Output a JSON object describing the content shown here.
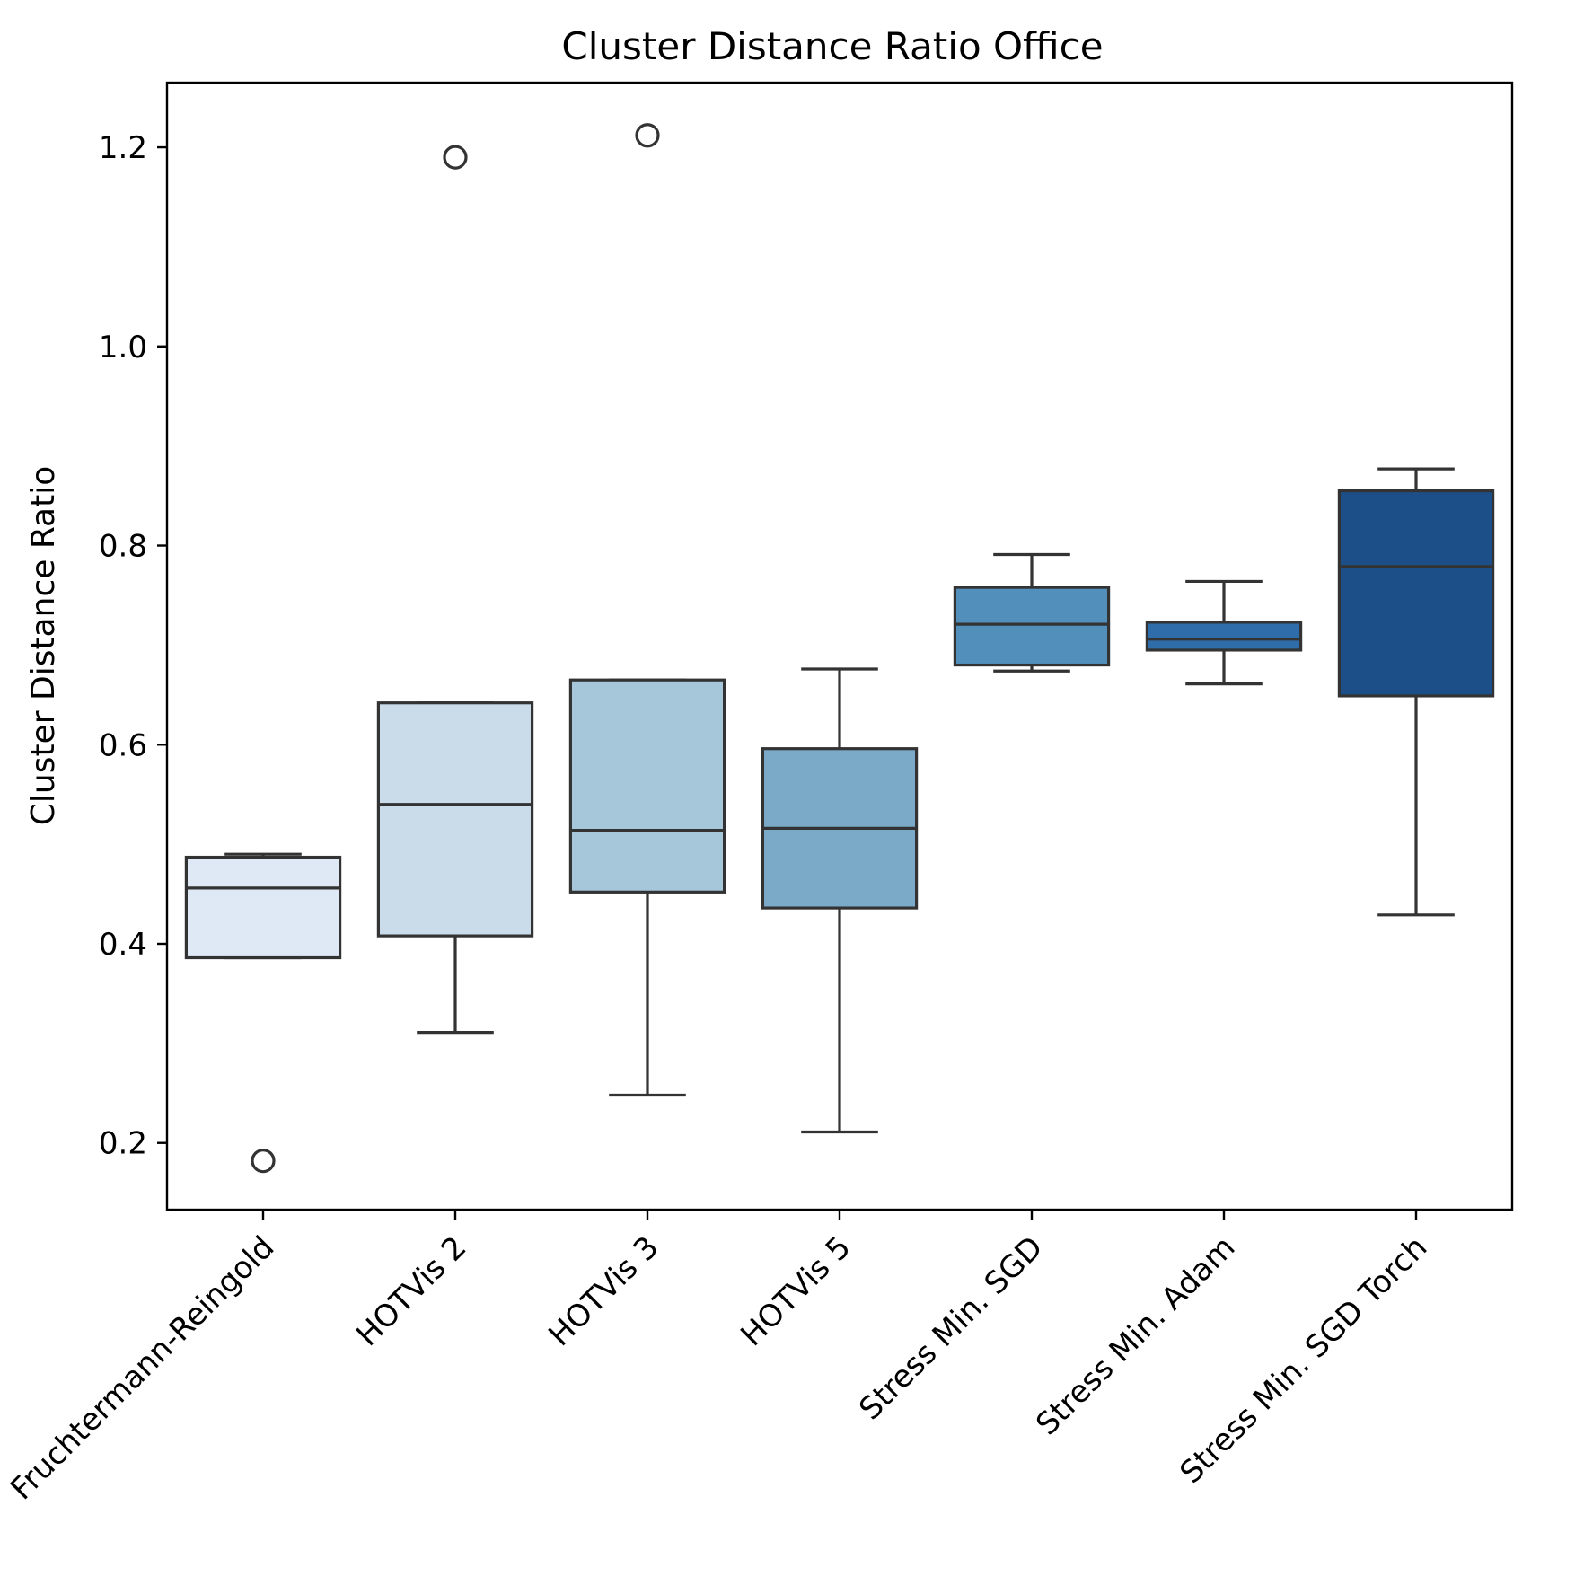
{
  "chart_data": {
    "type": "box",
    "title": "Cluster Distance Ratio Office",
    "xlabel": "",
    "ylabel": "Cluster Distance Ratio",
    "ylim": [
      0.133,
      1.265
    ],
    "yticks": [
      0.2,
      0.4,
      0.6,
      0.8,
      1.0,
      1.2
    ],
    "ytick_labels": [
      "0.2",
      "0.4",
      "0.6",
      "0.8",
      "1.0",
      "1.2"
    ],
    "grid": false,
    "legend": "none",
    "categories": [
      "Fruchtermann-Reingold",
      "HOTVis 2",
      "HOTVis 3",
      "HOTVis 5",
      "Stress Min. SGD",
      "Stress Min. Adam",
      "Stress Min. SGD Torch"
    ],
    "boxes": [
      {
        "whisker_low": 0.386,
        "q1": 0.386,
        "median": 0.456,
        "q3": 0.487,
        "whisker_high": 0.49,
        "outliers": [
          0.182
        ],
        "color": "#dee9f5"
      },
      {
        "whisker_low": 0.311,
        "q1": 0.408,
        "median": 0.54,
        "q3": 0.642,
        "whisker_high": 0.642,
        "outliers": [
          1.19
        ],
        "color": "#cadbea"
      },
      {
        "whisker_low": 0.248,
        "q1": 0.452,
        "median": 0.514,
        "q3": 0.665,
        "whisker_high": 0.665,
        "outliers": [
          1.212
        ],
        "color": "#a6c6d9"
      },
      {
        "whisker_low": 0.211,
        "q1": 0.436,
        "median": 0.516,
        "q3": 0.596,
        "whisker_high": 0.676,
        "outliers": [],
        "color": "#7baac9"
      },
      {
        "whisker_low": 0.674,
        "q1": 0.68,
        "median": 0.721,
        "q3": 0.758,
        "whisker_high": 0.791,
        "outliers": [],
        "color": "#528fbb"
      },
      {
        "whisker_low": 0.661,
        "q1": 0.695,
        "median": 0.706,
        "q3": 0.723,
        "whisker_high": 0.764,
        "outliers": [],
        "color": "#2e6daa"
      },
      {
        "whisker_low": 0.429,
        "q1": 0.649,
        "median": 0.779,
        "q3": 0.855,
        "whisker_high": 0.877,
        "outliers": [],
        "color": "#1c4f87"
      }
    ]
  }
}
